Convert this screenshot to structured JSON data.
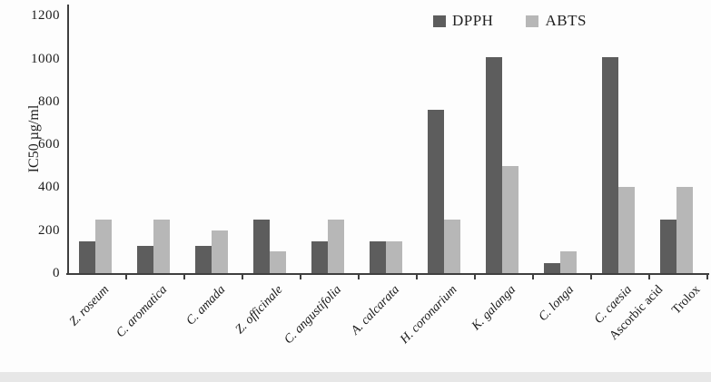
{
  "chart_data": {
    "type": "bar",
    "title": "",
    "ylabel": "IC50 µg/ml",
    "xlabel": "",
    "ylim": [
      0,
      1200
    ],
    "yticks": [
      0,
      200,
      400,
      600,
      800,
      1000,
      1200
    ],
    "grid": false,
    "legend_position": "top-right",
    "categories": [
      "Z. roseum",
      "C. aromatica",
      "C. amada",
      "Z. officinale",
      "C. angustifolia",
      "A. calcarata",
      "H. coronarium",
      "K. galanga",
      "C. longa",
      "C. caesia",
      "Ascorbic acid",
      "Trolox"
    ],
    "categories_italic": [
      true,
      true,
      true,
      true,
      true,
      true,
      true,
      true,
      true,
      true,
      false,
      false
    ],
    "series": [
      {
        "name": "DPPH",
        "color": "#5d5d5d",
        "values": [
          150,
          125,
          125,
          250,
          150,
          150,
          760,
          1005,
          45,
          1005,
          250,
          null
        ]
      },
      {
        "name": "ABTS",
        "color": "#b7b7b7",
        "values": [
          250,
          250,
          200,
          100,
          250,
          150,
          250,
          500,
          100,
          400,
          null,
          400
        ]
      }
    ]
  },
  "colors": {
    "axis": "#3f3f3f",
    "text": "#1c1c1c",
    "bottom_strip": "#e7e7e7"
  }
}
